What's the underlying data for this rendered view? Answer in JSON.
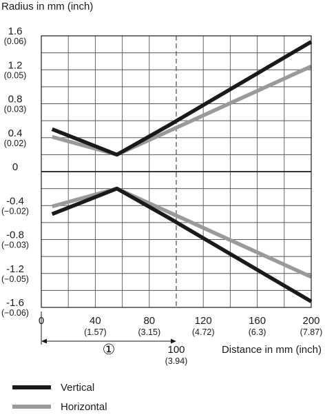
{
  "chart_data": {
    "type": "line",
    "ylabel": "Radius in mm (inch)",
    "xlabel": "Distance in mm (inch)",
    "xlim": [
      0,
      200
    ],
    "ylim": [
      -1.6,
      1.6
    ],
    "grid": true,
    "legend_position": "bottom-left",
    "x_ticks": [
      {
        "value": 0,
        "label": "0",
        "sub": ""
      },
      {
        "value": 40,
        "label": "40",
        "sub": "(1.57)"
      },
      {
        "value": 80,
        "label": "80",
        "sub": "(3.15)"
      },
      {
        "value": 120,
        "label": "120",
        "sub": "(4.72)"
      },
      {
        "value": 160,
        "label": "160",
        "sub": "(6.3)"
      },
      {
        "value": 200,
        "label": "200",
        "sub": "(7.87)"
      }
    ],
    "y_ticks": [
      {
        "value": 1.6,
        "label": "1.6",
        "sub": "(0.06)"
      },
      {
        "value": 1.2,
        "label": "1.2",
        "sub": "(0.05)"
      },
      {
        "value": 0.8,
        "label": "0.8",
        "sub": "(0.03)"
      },
      {
        "value": 0.4,
        "label": "0.4",
        "sub": "(0.02)"
      },
      {
        "value": 0,
        "label": "0",
        "sub": ""
      },
      {
        "value": -0.4,
        "label": "-0.4",
        "sub": "(−0.02)"
      },
      {
        "value": -0.8,
        "label": "-0.8",
        "sub": "(−0.03)"
      },
      {
        "value": -1.2,
        "label": "-1.2",
        "sub": "(−0.05)"
      },
      {
        "value": -1.6,
        "label": "-1.6",
        "sub": "(−0.06)"
      }
    ],
    "annotation": {
      "marker": "①",
      "x_start": 0,
      "x_end": 100,
      "label": "100",
      "sub": "(3.94)"
    },
    "series": [
      {
        "name": "Vertical",
        "color": "#1a1a1a",
        "upper": [
          [
            8,
            0.5
          ],
          [
            56,
            0.2
          ],
          [
            95,
            0.55
          ],
          [
            200,
            1.53
          ]
        ],
        "lower": [
          [
            8,
            -0.5
          ],
          [
            56,
            -0.2
          ],
          [
            95,
            -0.55
          ],
          [
            200,
            -1.53
          ]
        ]
      },
      {
        "name": "Horizontal",
        "color": "#9a9a9a",
        "upper": [
          [
            8,
            0.41
          ],
          [
            56,
            0.2
          ],
          [
            200,
            1.24
          ]
        ],
        "lower": [
          [
            8,
            -0.41
          ],
          [
            56,
            -0.2
          ],
          [
            200,
            -1.24
          ]
        ]
      }
    ]
  }
}
